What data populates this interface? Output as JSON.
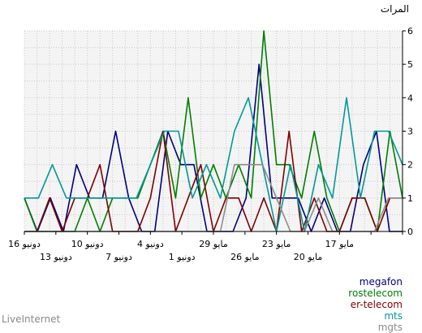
{
  "chart_data": {
    "type": "line",
    "ylabel": "المرات",
    "ylim": [
      0,
      6
    ],
    "y_ticks": [
      "0",
      "1",
      "2",
      "3",
      "4",
      "5",
      "6"
    ],
    "x_tick_labels_row1": [
      "16 دونيو",
      "10 دونيو",
      "4 دونيو",
      "29 مايو",
      "23 مايو",
      "17 مايو"
    ],
    "x_tick_labels_row2": [
      "13 دونيو",
      "7 دونيو",
      "1 دونيو",
      "26 مايو",
      "20 مايو"
    ],
    "grid": true,
    "legend_position": "bottom-right",
    "series": [
      {
        "name": "megafon",
        "color": "#00007f",
        "values": [
          1,
          0,
          1,
          0,
          2,
          1,
          1,
          3,
          1,
          0,
          0,
          3,
          2,
          2,
          0,
          0,
          0,
          1,
          5,
          1,
          1,
          1,
          0,
          1,
          0,
          0,
          2,
          3,
          0,
          0
        ]
      },
      {
        "name": "rostelecom",
        "color": "#007f00",
        "values": [
          1,
          0,
          0,
          0,
          0,
          1,
          0,
          1,
          1,
          1,
          2,
          3,
          1,
          4,
          1,
          2,
          1,
          2,
          1,
          6,
          2,
          2,
          1,
          3,
          1,
          0,
          1,
          1,
          0,
          3,
          1
        ]
      },
      {
        "name": "er-telecom",
        "color": "#7f0000",
        "values": [
          0,
          0,
          1,
          0,
          1,
          1,
          2,
          0,
          0,
          0,
          1,
          3,
          0,
          1,
          2,
          0,
          1,
          1,
          0,
          1,
          0,
          3,
          0,
          1,
          0,
          0,
          1,
          1,
          0,
          1,
          1
        ]
      },
      {
        "name": "mts",
        "color": "#009999",
        "values": [
          1,
          1,
          2,
          1,
          1,
          1,
          1,
          1,
          1,
          2,
          3,
          3,
          1,
          2,
          1,
          3,
          4,
          2,
          0,
          2,
          0,
          2,
          1,
          4,
          1,
          3,
          3,
          2
        ]
      },
      {
        "name": "mgts",
        "color": "#8c8c8c",
        "values": [
          0,
          0,
          0,
          0,
          0,
          0,
          0,
          0,
          0,
          0,
          0,
          0,
          0,
          0,
          0,
          2,
          2,
          2,
          1,
          0,
          0,
          1,
          0,
          0,
          0,
          0,
          1,
          1
        ]
      }
    ]
  },
  "watermark": "LiveInternet"
}
